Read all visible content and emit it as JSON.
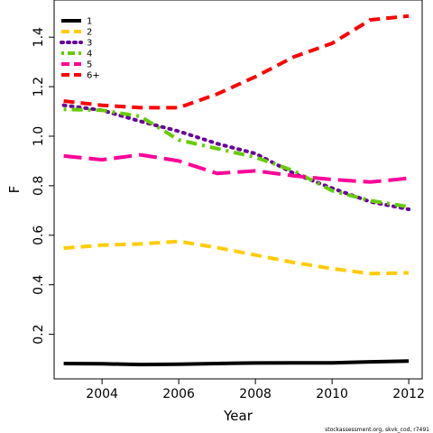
{
  "chart_data": {
    "type": "line",
    "title": "",
    "xlabel": "Year",
    "ylabel": "F",
    "xlim": [
      2002.75,
      2012.35
    ],
    "ylim": [
      0.02,
      1.55
    ],
    "x_ticks": [
      2004,
      2006,
      2008,
      2010,
      2012
    ],
    "x_tick_labels": [
      "2004",
      "2006",
      "2008",
      "2010",
      "2012"
    ],
    "y_ticks": [
      0.2,
      0.4,
      0.6,
      0.8,
      1.0,
      1.2,
      1.4
    ],
    "y_tick_labels": [
      "0.2",
      "0.4",
      "0.6",
      "0.8",
      "1.0",
      "1.2",
      "1.4"
    ],
    "grid": false,
    "legend_position": "top-left",
    "x": [
      2003,
      2004,
      2005,
      2006,
      2007,
      2008,
      2009,
      2010,
      2011,
      2012
    ],
    "series": [
      {
        "name": "1",
        "color": "#000000",
        "dash": "solid",
        "values": [
          0.082,
          0.081,
          0.078,
          0.079,
          0.082,
          0.084,
          0.085,
          0.085,
          0.089,
          0.092
        ]
      },
      {
        "name": "2",
        "color": "#ffcc00",
        "dash": "dashed",
        "values": [
          0.548,
          0.56,
          0.565,
          0.575,
          0.55,
          0.52,
          0.49,
          0.465,
          0.445,
          0.448
        ]
      },
      {
        "name": "3",
        "color": "#660099",
        "dash": "dotted",
        "values": [
          1.125,
          1.105,
          1.06,
          1.02,
          0.97,
          0.93,
          0.85,
          0.79,
          0.735,
          0.705
        ]
      },
      {
        "name": "4",
        "color": "#66cc00",
        "dash": "dotdash",
        "values": [
          1.108,
          1.105,
          1.08,
          0.985,
          0.95,
          0.915,
          0.86,
          0.78,
          0.74,
          0.715
        ]
      },
      {
        "name": "5",
        "color": "#ff0099",
        "dash": "longdash",
        "values": [
          0.92,
          0.905,
          0.925,
          0.9,
          0.85,
          0.86,
          0.84,
          0.825,
          0.815,
          0.83
        ]
      },
      {
        "name": "6+",
        "color": "#ff0000",
        "dash": "dashed",
        "values": [
          1.142,
          1.125,
          1.115,
          1.115,
          1.17,
          1.24,
          1.32,
          1.375,
          1.47,
          1.485
        ]
      }
    ]
  },
  "caption": "stockassessment.org, skvk_cod, r7491"
}
